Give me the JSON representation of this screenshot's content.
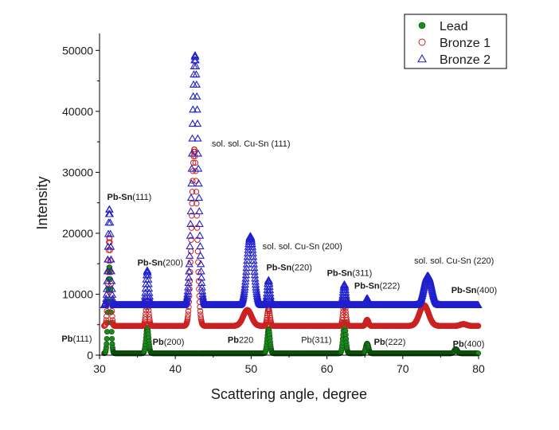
{
  "chart_data": {
    "type": "scatter",
    "xlabel": "Scattering angle, degree",
    "ylabel": "Intensity",
    "xlim": [
      30,
      80
    ],
    "ylim": [
      0,
      52000
    ],
    "x_ticks": [
      30,
      40,
      50,
      60,
      70,
      80
    ],
    "y_ticks": [
      0,
      10000,
      20000,
      30000,
      40000,
      50000
    ],
    "grid": false,
    "legend_position": "top-right",
    "series": [
      {
        "name": "Lead",
        "marker": "filled-circle",
        "color": "#1e8a1e",
        "baseline": 300,
        "peaks": [
          [
            31.3,
            14200,
            0.18
          ],
          [
            36.3,
            4200,
            0.18
          ],
          [
            52.3,
            4000,
            0.18
          ],
          [
            62.3,
            5000,
            0.18
          ],
          [
            65.3,
            1600,
            0.18
          ],
          [
            77.0,
            700,
            0.2
          ]
        ]
      },
      {
        "name": "Bronze 1",
        "marker": "open-circle",
        "color": "#cc2222",
        "baseline": 4800,
        "peaks": [
          [
            31.3,
            14500,
            0.18
          ],
          [
            36.3,
            4200,
            0.18
          ],
          [
            42.5,
            29000,
            0.35
          ],
          [
            49.5,
            2600,
            0.55
          ],
          [
            52.3,
            2800,
            0.18
          ],
          [
            62.3,
            3800,
            0.18
          ],
          [
            65.3,
            1000,
            0.18
          ],
          [
            72.8,
            3400,
            0.6
          ],
          [
            78.0,
            300,
            0.4
          ]
        ]
      },
      {
        "name": "Bronze 2",
        "marker": "open-triangle",
        "color": "#1f1fcc",
        "baseline": 8200,
        "peaks": [
          [
            31.3,
            15800,
            0.18
          ],
          [
            36.3,
            5700,
            0.18
          ],
          [
            42.6,
            41000,
            0.4
          ],
          [
            49.9,
            11300,
            0.45
          ],
          [
            52.3,
            4100,
            0.18
          ],
          [
            62.3,
            3400,
            0.18
          ],
          [
            65.3,
            1100,
            0.18
          ],
          [
            73.3,
            4800,
            0.5
          ]
        ]
      }
    ],
    "annotations": [
      {
        "bold": "Pb-Sn",
        "text": "(111)",
        "x": 31.0,
        "y": 25500
      },
      {
        "bold": "",
        "text": "sol. sol. Cu-Sn (111)",
        "x": 44.8,
        "y": 34200
      },
      {
        "bold": "Pb-Sn",
        "text": "(200)",
        "x": 35.0,
        "y": 14700
      },
      {
        "bold": "",
        "text": "sol. sol. Cu-Sn (200)",
        "x": 51.5,
        "y": 17400
      },
      {
        "bold": "Pb-Sn",
        "text": "(220)",
        "x": 52.0,
        "y": 13900
      },
      {
        "bold": "Pb-Sn",
        "text": "(311)",
        "x": 60.0,
        "y": 13000
      },
      {
        "bold": "Pb-Sn",
        "text": "(222)",
        "x": 63.6,
        "y": 10900
      },
      {
        "bold": "",
        "text": "sol. sol. Cu-Sn (220)",
        "x": 71.5,
        "y": 15000
      },
      {
        "bold": "Pb-Sn",
        "text": "(400)",
        "x": 76.4,
        "y": 10200
      },
      {
        "bold": "Pb",
        "text": "(111)",
        "x": 25.0,
        "y": 2200
      },
      {
        "bold": "Pb",
        "text": "(200)",
        "x": 37.0,
        "y": 1700
      },
      {
        "bold": "Pb",
        "text": "220",
        "x": 46.9,
        "y": 2000
      },
      {
        "bold": "",
        "text": "Pb(311)",
        "x": 56.6,
        "y": 2000
      },
      {
        "bold": "Pb",
        "text": "(222)",
        "x": 66.2,
        "y": 1700
      },
      {
        "bold": "Pb",
        "text": "(400)",
        "x": 76.6,
        "y": 1400
      }
    ]
  }
}
